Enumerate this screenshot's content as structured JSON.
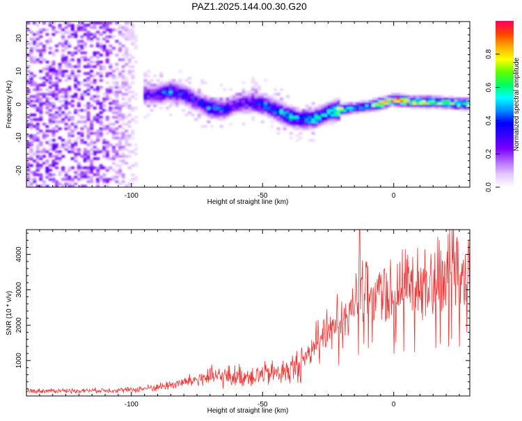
{
  "title": "PAZ1.2025.144.00.30.G20",
  "chart_data": [
    {
      "type": "heatmap",
      "name": "spectrogram",
      "xlabel": "Height of straight line (km)",
      "ylabel": "Frequency (Hz)",
      "xlim": [
        -140,
        29
      ],
      "ylim": [
        -25,
        25
      ],
      "xticks": [
        -100,
        -50,
        0
      ],
      "yticks": [
        -20,
        -10,
        0,
        10,
        20
      ],
      "colorbar": {
        "label": "Normalized spectral amplitude",
        "range": [
          0,
          1
        ],
        "ticks": [
          0.0,
          0.2,
          0.4,
          0.6,
          0.8
        ],
        "tick_labels": [
          "0.0",
          "0.2",
          "0.4",
          "0.6",
          "0.8"
        ],
        "colors": [
          "#ffffff",
          "#e4c8ff",
          "#b469ff",
          "#7a00ff",
          "#3b00ff",
          "#0000ff",
          "#0090ff",
          "#00ffff",
          "#00ff60",
          "#60ff00",
          "#ffff00",
          "#ffaa00",
          "#ff4000",
          "#ff0060"
        ]
      },
      "ridge": [
        {
          "x": -95,
          "f": 3.0,
          "a": 0.3
        },
        {
          "x": -90,
          "f": 3.2,
          "a": 0.35
        },
        {
          "x": -85,
          "f": 4.0,
          "a": 0.45
        },
        {
          "x": -80,
          "f": 3.0,
          "a": 0.4
        },
        {
          "x": -75,
          "f": 1.0,
          "a": 0.35
        },
        {
          "x": -70,
          "f": -1.0,
          "a": 0.45
        },
        {
          "x": -65,
          "f": -1.5,
          "a": 0.4
        },
        {
          "x": -60,
          "f": 0.0,
          "a": 0.3
        },
        {
          "x": -55,
          "f": 0.8,
          "a": 0.35
        },
        {
          "x": -50,
          "f": 0.0,
          "a": 0.45
        },
        {
          "x": -45,
          "f": -1.5,
          "a": 0.5
        },
        {
          "x": -40,
          "f": -3.5,
          "a": 0.55
        },
        {
          "x": -35,
          "f": -4.5,
          "a": 0.45
        },
        {
          "x": -30,
          "f": -4.2,
          "a": 0.55
        },
        {
          "x": -25,
          "f": -2.5,
          "a": 0.5
        },
        {
          "x": -20,
          "f": -1.5,
          "a": 0.85
        },
        {
          "x": -15,
          "f": -1.0,
          "a": 0.45
        },
        {
          "x": -10,
          "f": -0.5,
          "a": 0.55
        },
        {
          "x": -5,
          "f": 0.3,
          "a": 0.9
        },
        {
          "x": 0,
          "f": 1.5,
          "a": 0.95
        },
        {
          "x": 5,
          "f": 1.0,
          "a": 0.8
        },
        {
          "x": 10,
          "f": 0.8,
          "a": 0.8
        },
        {
          "x": 15,
          "f": 0.8,
          "a": 0.8
        },
        {
          "x": 20,
          "f": 0.5,
          "a": 0.7
        },
        {
          "x": 25,
          "f": 0.3,
          "a": 0.8
        },
        {
          "x": 29,
          "f": 0.2,
          "a": 0.8
        }
      ]
    },
    {
      "type": "line",
      "name": "snr",
      "xlabel": "Height of straight line (km)",
      "ylabel": "SNR (10 * v/v)",
      "xlim": [
        -140,
        29
      ],
      "ylim": [
        0,
        4700
      ],
      "xticks": [
        -100,
        -50,
        0
      ],
      "yticks": [
        1000,
        2000,
        3000,
        4000
      ],
      "color": "#ee3333",
      "trend": {
        "x": [
          -140,
          -120,
          -100,
          -90,
          -80,
          -72,
          -60,
          -50,
          -40,
          -35,
          -30,
          -25,
          -20,
          -15,
          -13,
          -10,
          -5,
          0,
          5,
          10,
          15,
          20,
          25,
          29
        ],
        "y": [
          140,
          150,
          170,
          250,
          380,
          520,
          560,
          600,
          700,
          950,
          1500,
          1900,
          2200,
          2600,
          3000,
          2800,
          2900,
          3000,
          3100,
          3200,
          3400,
          3600,
          3850,
          3800
        ]
      }
    }
  ]
}
